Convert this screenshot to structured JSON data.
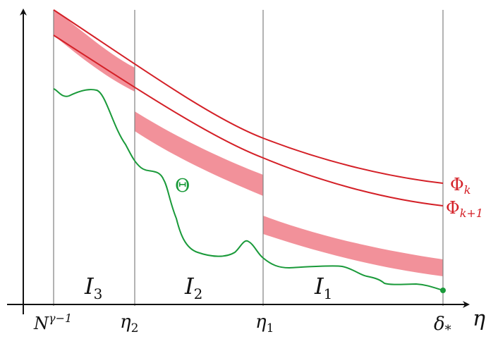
{
  "colors": {
    "axis": "#111111",
    "vertical_line": "#808080",
    "phi_curve": "#d42027",
    "band_fill": "#f2919a",
    "theta_curve": "#1a9a3a"
  },
  "x_ticks": [
    {
      "base": "N",
      "sup": "γ−1"
    },
    {
      "base": "η",
      "sub": "2"
    },
    {
      "base": "η",
      "sub": "1"
    },
    {
      "base": "δ",
      "sub": "*"
    }
  ],
  "axis_label": "η",
  "intervals": [
    {
      "base": "I",
      "sub": "3"
    },
    {
      "base": "I",
      "sub": "2"
    },
    {
      "base": "I",
      "sub": "1"
    }
  ],
  "curves": {
    "phi_k": {
      "base": "Φ",
      "sub": "k"
    },
    "phi_k1": {
      "base": "Φ",
      "sub": "k+1"
    },
    "theta": "Θ"
  }
}
